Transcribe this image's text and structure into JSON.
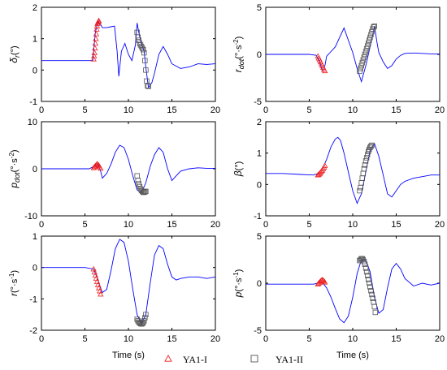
{
  "chart_data": [
    {
      "type": "line",
      "ylabel": "δr(°)",
      "ylabel_parts": {
        "main": "δ",
        "sub": "r",
        "unit": "(°)"
      },
      "xlim": [
        0,
        20
      ],
      "ylim": [
        -1,
        2
      ],
      "xticks": [
        "0",
        "5",
        "10",
        "15",
        "20"
      ],
      "yticks": [
        "-1",
        "0",
        "1",
        "2"
      ],
      "series": [
        {
          "marker": "line",
          "color": "#0000ff",
          "x": [
            0,
            5.5,
            5.9,
            6.0,
            6.2,
            6.5,
            6.8,
            7.0,
            7.5,
            8.0,
            8.4,
            8.7,
            8.9,
            9.2,
            9.6,
            10.0,
            10.4,
            10.8,
            11.0,
            11.2,
            11.5,
            11.8,
            12.0,
            12.3,
            12.7,
            13.0,
            13.5,
            14.0,
            14.5,
            15.0,
            16.0,
            17.0,
            18.0,
            19.0,
            20.0
          ],
          "y": [
            0.3,
            0.3,
            0.3,
            0.6,
            1.2,
            1.55,
            1.45,
            1.35,
            1.35,
            1.38,
            1.4,
            0.6,
            -0.2,
            0.6,
            0.85,
            0.5,
            0.3,
            0.8,
            1.5,
            1.2,
            0.8,
            0.6,
            0.1,
            -0.55,
            -0.4,
            -0.1,
            0.5,
            0.75,
            0.5,
            0.2,
            0.05,
            0.1,
            0.2,
            0.18,
            0.2
          ]
        },
        {
          "name": "YA1-I",
          "marker": "triangle",
          "color": "#ee2222",
          "x": [
            6.0,
            6.05,
            6.1,
            6.15,
            6.2,
            6.25,
            6.3,
            6.35,
            6.4,
            6.45,
            6.5,
            6.55,
            6.6
          ],
          "y": [
            0.35,
            0.45,
            0.55,
            0.7,
            0.85,
            1.0,
            1.15,
            1.3,
            1.4,
            1.48,
            1.52,
            1.55,
            1.57
          ]
        },
        {
          "name": "YA1-II",
          "marker": "square",
          "color": "#555555",
          "x": [
            11.0,
            11.1,
            11.2,
            11.3,
            11.4,
            11.5,
            11.6,
            11.7,
            11.8,
            11.9,
            12.0,
            12.1,
            12.2,
            12.3
          ],
          "y": [
            1.2,
            1.05,
            0.95,
            0.85,
            0.8,
            0.75,
            0.7,
            0.65,
            0.55,
            0.3,
            0.0,
            -0.35,
            -0.5,
            -0.52
          ]
        }
      ]
    },
    {
      "type": "line",
      "ylabel": "rdot(°·s-2)",
      "ylabel_parts": {
        "main": "r",
        "sub": "dot",
        "unit": "(°·s",
        "sup": "-2",
        "close": ")"
      },
      "xlim": [
        0,
        20
      ],
      "ylim": [
        -5,
        5
      ],
      "xticks": [
        "0",
        "5",
        "10",
        "15",
        "20"
      ],
      "yticks": [
        "-5",
        "0",
        "5"
      ],
      "series": [
        {
          "marker": "line",
          "color": "#0000ff",
          "x": [
            0,
            5.0,
            5.8,
            6.2,
            6.5,
            6.8,
            7.0,
            7.5,
            8.0,
            8.5,
            9.0,
            9.5,
            10.0,
            10.5,
            11.0,
            11.5,
            12.0,
            12.3,
            12.5,
            12.8,
            13.0,
            13.5,
            14.0,
            14.5,
            15.0,
            15.5,
            16.0,
            17.0,
            18.0,
            19.0,
            20.0
          ],
          "y": [
            0,
            0,
            -0.1,
            -0.8,
            -1.7,
            -1.2,
            -0.2,
            0.3,
            0.8,
            1.8,
            2.8,
            1.5,
            0.2,
            -1.5,
            -2.9,
            -1.2,
            0.8,
            2.0,
            3.0,
            1.2,
            0.2,
            -0.8,
            -1.5,
            -1.2,
            -0.5,
            -0.1,
            0.1,
            0.15,
            0.1,
            0.05,
            0.05
          ]
        },
        {
          "name": "YA1-I",
          "marker": "triangle",
          "color": "#ee2222",
          "x": [
            6.0,
            6.1,
            6.2,
            6.3,
            6.4,
            6.5,
            6.6,
            6.7,
            6.8
          ],
          "y": [
            -0.2,
            -0.4,
            -0.6,
            -0.8,
            -1.0,
            -1.2,
            -1.4,
            -1.6,
            -1.75
          ]
        },
        {
          "name": "YA1-II",
          "marker": "square",
          "color": "#555555",
          "x": [
            10.8,
            10.9,
            11.0,
            11.1,
            11.2,
            11.3,
            11.4,
            11.5,
            11.6,
            11.7,
            11.8,
            11.9,
            12.0,
            12.1,
            12.2,
            12.3,
            12.4,
            12.5
          ],
          "y": [
            -1.8,
            -1.5,
            -1.2,
            -0.9,
            -0.6,
            -0.3,
            0.0,
            0.3,
            0.6,
            0.9,
            1.2,
            1.5,
            1.8,
            2.1,
            2.4,
            2.7,
            2.9,
            3.0
          ]
        }
      ]
    },
    {
      "type": "line",
      "ylabel": "pdot(°·s-2)",
      "ylabel_parts": {
        "main": "p",
        "sub": "dot",
        "unit": "(°·s",
        "sup": "-2",
        "close": ")"
      },
      "xlim": [
        0,
        20
      ],
      "ylim": [
        -10,
        10
      ],
      "xticks": [
        "0",
        "5",
        "10",
        "15",
        "20"
      ],
      "yticks": [
        "-10",
        "0",
        "10"
      ],
      "series": [
        {
          "marker": "line",
          "color": "#0000ff",
          "x": [
            0,
            5.5,
            6.0,
            6.5,
            6.8,
            7.0,
            7.5,
            8.0,
            8.5,
            9.0,
            9.5,
            10.0,
            10.5,
            11.0,
            11.5,
            12.0,
            12.5,
            13.0,
            13.5,
            14.0,
            14.5,
            15.0,
            15.5,
            16.0,
            17.0,
            18.0,
            19.0,
            20.0
          ],
          "y": [
            0,
            0,
            0.5,
            1.0,
            -0.5,
            -2.0,
            -1.0,
            1.0,
            3.5,
            5.0,
            4.5,
            2.0,
            -1.5,
            -4.5,
            -5.0,
            -3.0,
            0.5,
            3.0,
            4.5,
            3.5,
            0.0,
            -2.5,
            -1.5,
            -0.5,
            0.0,
            0.2,
            0.1,
            0.1
          ]
        },
        {
          "name": "YA1-I",
          "marker": "triangle",
          "color": "#ee2222",
          "x": [
            6.0,
            6.1,
            6.2,
            6.3,
            6.4,
            6.5,
            6.6,
            6.7,
            6.8
          ],
          "y": [
            0.2,
            0.4,
            0.6,
            0.8,
            1.0,
            0.9,
            0.7,
            0.4,
            0.1
          ]
        },
        {
          "name": "YA1-II",
          "marker": "square",
          "color": "#555555",
          "x": [
            11.0,
            11.1,
            11.2,
            11.3,
            11.4,
            11.5,
            11.6,
            11.7,
            11.8,
            11.9,
            12.0
          ],
          "y": [
            -1.5,
            -2.5,
            -3.2,
            -3.8,
            -4.3,
            -4.6,
            -4.8,
            -5.0,
            -5.0,
            -4.9,
            -4.8
          ]
        }
      ]
    },
    {
      "type": "line",
      "ylabel": "β(°)",
      "ylabel_parts": {
        "main": "β",
        "unit": "(°)"
      },
      "xlim": [
        0,
        20
      ],
      "ylim": [
        -1,
        2
      ],
      "xticks": [
        "0",
        "5",
        "10",
        "15",
        "20"
      ],
      "yticks": [
        "-1",
        "0",
        "1",
        "2"
      ],
      "series": [
        {
          "marker": "line",
          "color": "#0000ff",
          "x": [
            0,
            2.0,
            4.0,
            5.5,
            6.0,
            6.5,
            7.0,
            7.5,
            8.0,
            8.3,
            8.6,
            9.0,
            9.5,
            10.0,
            10.5,
            11.0,
            11.5,
            12.0,
            12.5,
            13.0,
            13.5,
            14.0,
            14.5,
            15.0,
            15.5,
            16.0,
            17.0,
            18.0,
            19.0,
            20.0
          ],
          "y": [
            0.35,
            0.35,
            0.32,
            0.3,
            0.35,
            0.5,
            0.8,
            1.2,
            1.45,
            1.5,
            1.4,
            1.0,
            0.4,
            -0.2,
            -0.6,
            -0.3,
            0.4,
            1.1,
            1.3,
            0.9,
            0.3,
            -0.3,
            -0.4,
            -0.2,
            0.0,
            0.1,
            0.2,
            0.25,
            0.3,
            0.3
          ]
        },
        {
          "name": "YA1-I",
          "marker": "triangle",
          "color": "#ee2222",
          "x": [
            6.0,
            6.1,
            6.2,
            6.3,
            6.4,
            6.5,
            6.6,
            6.7,
            6.8
          ],
          "y": [
            0.3,
            0.32,
            0.35,
            0.38,
            0.42,
            0.45,
            0.5,
            0.55,
            0.6
          ]
        },
        {
          "name": "YA1-II",
          "marker": "square",
          "color": "#555555",
          "x": [
            10.8,
            10.9,
            11.0,
            11.1,
            11.2,
            11.3,
            11.4,
            11.5,
            11.6,
            11.7,
            11.8,
            11.9,
            12.0,
            12.1,
            12.2
          ],
          "y": [
            -0.2,
            -0.1,
            0.05,
            0.2,
            0.35,
            0.5,
            0.62,
            0.75,
            0.85,
            0.95,
            1.05,
            1.12,
            1.18,
            1.22,
            1.25
          ]
        }
      ]
    },
    {
      "type": "line",
      "ylabel": "r(°·s-1)",
      "ylabel_parts": {
        "main": "r",
        "unit": "(°·s",
        "sup": "-1",
        "close": ")"
      },
      "xlim": [
        0,
        20
      ],
      "ylim": [
        -2,
        1
      ],
      "xticks": [
        "0",
        "5",
        "10",
        "15",
        "20"
      ],
      "yticks": [
        "-2",
        "-1",
        "0",
        "1"
      ],
      "series": [
        {
          "marker": "line",
          "color": "#0000ff",
          "x": [
            0,
            5.0,
            6.0,
            6.5,
            7.0,
            7.5,
            8.0,
            8.5,
            9.0,
            9.5,
            10.0,
            10.5,
            11.0,
            11.5,
            12.0,
            12.5,
            13.0,
            13.5,
            14.0,
            14.5,
            15.0,
            15.5,
            16.0,
            17.0,
            18.0,
            19.0,
            20.0
          ],
          "y": [
            0,
            0,
            -0.05,
            -0.4,
            -0.8,
            -0.7,
            -0.1,
            0.6,
            0.9,
            0.8,
            0.2,
            -0.7,
            -1.5,
            -1.8,
            -1.5,
            -0.5,
            0.4,
            0.7,
            0.6,
            0.1,
            -0.3,
            -0.4,
            -0.35,
            -0.3,
            -0.3,
            -0.35,
            -0.3
          ]
        },
        {
          "name": "YA1-I",
          "marker": "triangle",
          "color": "#ee2222",
          "x": [
            6.0,
            6.1,
            6.2,
            6.3,
            6.4,
            6.5,
            6.6,
            6.7,
            6.8
          ],
          "y": [
            -0.05,
            -0.15,
            -0.25,
            -0.35,
            -0.45,
            -0.55,
            -0.65,
            -0.75,
            -0.85
          ]
        },
        {
          "name": "YA1-II",
          "marker": "square",
          "color": "#555555",
          "x": [
            11.0,
            11.1,
            11.2,
            11.3,
            11.4,
            11.5,
            11.6,
            11.7,
            11.8,
            11.9,
            12.0
          ],
          "y": [
            -1.65,
            -1.7,
            -1.74,
            -1.77,
            -1.79,
            -1.8,
            -1.79,
            -1.76,
            -1.7,
            -1.6,
            -1.5
          ]
        }
      ]
    },
    {
      "type": "line",
      "ylabel": "p(°·s-1)",
      "ylabel_parts": {
        "main": "p",
        "unit": "(°·s",
        "sup": "-1",
        "close": ")"
      },
      "xlim": [
        0,
        20
      ],
      "ylim": [
        -5,
        5
      ],
      "xticks": [
        "0",
        "5",
        "10",
        "15",
        "20"
      ],
      "yticks": [
        "-5",
        "0",
        "5"
      ],
      "series": [
        {
          "marker": "line",
          "color": "#0000ff",
          "x": [
            0,
            4.0,
            5.5,
            6.0,
            6.5,
            7.0,
            7.5,
            8.0,
            8.5,
            9.0,
            9.5,
            10.0,
            10.5,
            11.0,
            11.5,
            12.0,
            12.5,
            13.0,
            13.5,
            14.0,
            14.5,
            15.0,
            15.5,
            16.0,
            17.0,
            18.0,
            19.0,
            20.0
          ],
          "y": [
            -0.1,
            -0.1,
            -0.1,
            0.0,
            0.1,
            -0.5,
            -1.5,
            -2.7,
            -3.8,
            -4.2,
            -3.5,
            -1.5,
            1.0,
            2.5,
            2.5,
            1.2,
            -1.5,
            -3.2,
            -2.8,
            -0.5,
            1.5,
            2.1,
            1.5,
            0.5,
            -0.3,
            0.0,
            -0.2,
            0.0
          ]
        },
        {
          "name": "YA1-I",
          "marker": "triangle",
          "color": "#ee2222",
          "x": [
            6.0,
            6.1,
            6.2,
            6.3,
            6.4,
            6.5,
            6.6,
            6.7,
            6.8
          ],
          "y": [
            -0.1,
            0.0,
            0.1,
            0.2,
            0.3,
            0.35,
            0.3,
            0.2,
            0.1
          ]
        },
        {
          "name": "YA1-II",
          "marker": "square",
          "color": "#555555",
          "x": [
            10.8,
            10.9,
            11.0,
            11.1,
            11.2,
            11.3,
            11.4,
            11.5,
            11.6,
            11.7,
            11.8,
            11.9,
            12.0,
            12.1,
            12.2,
            12.3,
            12.4,
            12.5,
            12.6
          ],
          "y": [
            2.4,
            2.5,
            2.6,
            2.6,
            2.5,
            2.3,
            2.0,
            1.6,
            1.2,
            0.8,
            0.4,
            0.0,
            -0.4,
            -0.8,
            -1.2,
            -1.6,
            -2.0,
            -2.5,
            -3.1
          ]
        }
      ]
    }
  ],
  "xlabel": "Time (s)",
  "legend": {
    "placement": "bottom-center",
    "items": [
      {
        "name": "YA1-I",
        "marker": "triangle",
        "color": "#ee2222"
      },
      {
        "name": "YA1-II",
        "marker": "square",
        "color": "#555555"
      }
    ]
  }
}
